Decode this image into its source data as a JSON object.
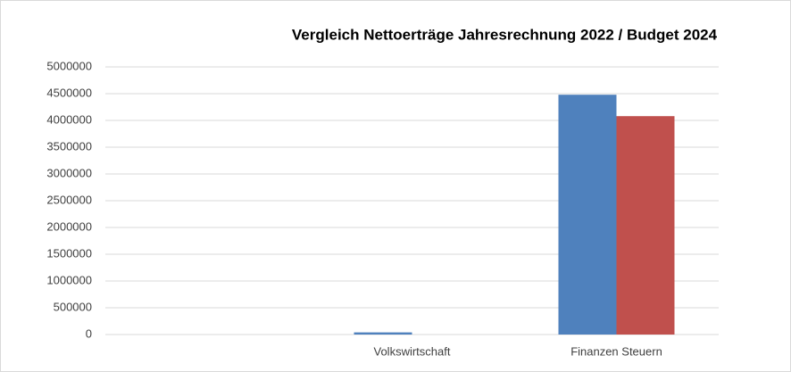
{
  "chart_data": {
    "type": "bar",
    "title": "Vergleich Nettoerträge Jahresrechnung 2022 / Budget 2024",
    "categories": [
      null,
      "Volkswirtschaft",
      "Finanzen Steuern"
    ],
    "series": [
      {
        "color": "#4f81bd",
        "values": [
          null,
          40000,
          4480000
        ]
      },
      {
        "color": "#c0504d",
        "values": [
          null,
          0,
          4080000
        ]
      }
    ],
    "ylim": [
      0,
      5000000
    ],
    "yticks": [
      0,
      500000,
      1000000,
      1500000,
      2000000,
      2500000,
      3000000,
      3500000,
      4000000,
      4500000,
      5000000
    ],
    "grid": true
  }
}
